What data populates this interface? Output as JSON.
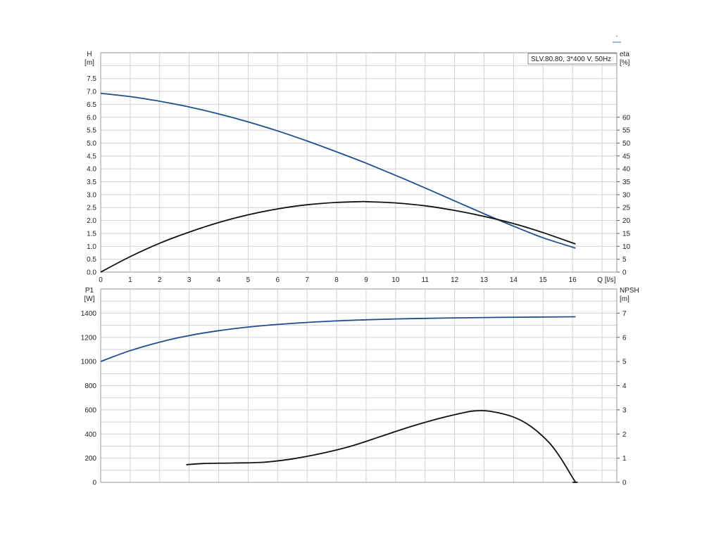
{
  "corner_mark": "⋅",
  "chart_data": [
    {
      "type": "line",
      "name_label": "SLV.80.80, 3*400 V, 50Hz",
      "y_left_label_line1": "H",
      "y_left_label_line2": "[m]",
      "y_right_label_line1": "eta",
      "y_right_label_line2": "[%]",
      "x_label": "Q [l/s]",
      "x_ticks": [
        0,
        1,
        2,
        3,
        4,
        5,
        6,
        7,
        8,
        9,
        10,
        11,
        12,
        13,
        14,
        15,
        16
      ],
      "xlim": [
        0,
        17.5
      ],
      "y_left_ticks": [
        "0.0",
        "0.5",
        "1.0",
        "1.5",
        "2.0",
        "2.5",
        "3.0",
        "3.5",
        "4.0",
        "4.5",
        "5.0",
        "5.5",
        "6.0",
        "6.5",
        "7.0",
        "7.5"
      ],
      "ylim_left": [
        0,
        8.5
      ],
      "y_right_ticks": [
        0,
        5,
        10,
        15,
        20,
        25,
        30,
        35,
        40,
        45,
        50,
        55,
        60
      ],
      "ylim_right": [
        0,
        85
      ],
      "series": [
        {
          "axis": "left",
          "color": "#1f4e8c",
          "x": [
            0,
            1,
            2,
            3,
            4,
            5,
            6,
            7,
            8,
            9,
            10,
            11,
            12,
            13,
            14,
            15,
            16.1
          ],
          "y": [
            6.93,
            6.8,
            6.62,
            6.4,
            6.13,
            5.82,
            5.47,
            5.08,
            4.66,
            4.22,
            3.75,
            3.26,
            2.76,
            2.26,
            1.78,
            1.33,
            0.93
          ]
        },
        {
          "axis": "right",
          "color": "#111111",
          "x": [
            0,
            1,
            2,
            3,
            4,
            5,
            6,
            7,
            8,
            8.8,
            9,
            10,
            11,
            12,
            13,
            14,
            15,
            16.1
          ],
          "y": [
            0,
            6,
            11.2,
            15.5,
            19.2,
            22.2,
            24.5,
            26.1,
            27.0,
            27.3,
            27.3,
            26.8,
            25.7,
            23.9,
            21.6,
            18.8,
            15.3,
            10.9
          ]
        }
      ]
    },
    {
      "type": "line",
      "y_left_label_line1": "P1",
      "y_left_label_line2": "[W]",
      "y_right_label_line1": "NPSH",
      "y_right_label_line2": "[m]",
      "y_left_ticks": [
        0,
        200,
        400,
        600,
        800,
        1000,
        1200,
        1400
      ],
      "ylim_left": [
        0,
        1600
      ],
      "y_right_ticks": [
        0,
        1,
        2,
        3,
        4,
        5,
        6,
        7
      ],
      "ylim_right": [
        0,
        8
      ],
      "series": [
        {
          "axis": "left",
          "color": "#1f4e8c",
          "x": [
            0,
            1,
            2,
            3,
            4,
            5,
            6,
            7,
            8,
            9,
            10,
            11,
            12,
            13,
            14,
            15,
            16.1
          ],
          "y": [
            1000,
            1090,
            1160,
            1215,
            1255,
            1285,
            1307,
            1323,
            1336,
            1345,
            1352,
            1357,
            1361,
            1364,
            1366,
            1368,
            1370
          ]
        },
        {
          "axis": "right",
          "color": "#111111",
          "x": [
            2.9,
            3.5,
            4.5,
            5.5,
            6.5,
            7.5,
            8.5,
            9.5,
            10.5,
            11.5,
            12.3,
            12.7,
            13.2,
            14,
            14.6,
            15.2,
            15.6,
            15.95,
            16.1
          ],
          "y": [
            0.73,
            0.78,
            0.8,
            0.83,
            0.97,
            1.2,
            1.5,
            1.9,
            2.3,
            2.65,
            2.88,
            2.96,
            2.94,
            2.7,
            2.3,
            1.65,
            1.0,
            0.3,
            0.0
          ]
        }
      ]
    }
  ]
}
